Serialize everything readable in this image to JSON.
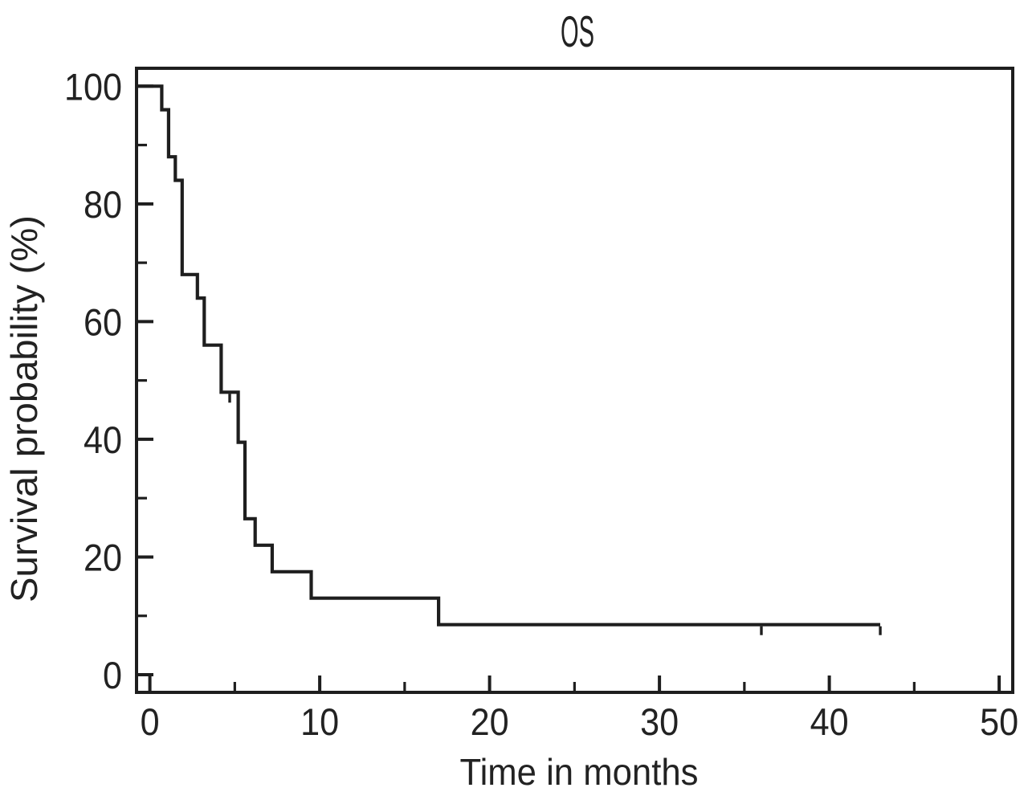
{
  "figure": {
    "title": "OS",
    "background": "#ffffff"
  },
  "chart_data": {
    "type": "line",
    "subtype": "kaplan-meier-step",
    "title": "OS",
    "xlabel": "Time in months",
    "ylabel": "Survival probability (%)",
    "xlim": [
      0,
      50
    ],
    "ylim": [
      0,
      100
    ],
    "x_major_ticks": [
      0,
      10,
      20,
      30,
      40,
      50
    ],
    "x_minor_ticks": [
      5,
      15,
      25,
      35,
      45
    ],
    "y_major_ticks": [
      0,
      20,
      40,
      60,
      80,
      100
    ],
    "y_minor_ticks": [
      10,
      30,
      50,
      70,
      90
    ],
    "grid": false,
    "legend_position": "none",
    "line_color": "#1e1e1e",
    "series": [
      {
        "name": "OS",
        "steps": [
          [
            0,
            100
          ],
          [
            0.7,
            96
          ],
          [
            1.1,
            88
          ],
          [
            1.5,
            84
          ],
          [
            1.9,
            68
          ],
          [
            2.8,
            64
          ],
          [
            3.2,
            56
          ],
          [
            4.2,
            48
          ],
          [
            5.2,
            39.5
          ],
          [
            5.6,
            26.5
          ],
          [
            6.2,
            22
          ],
          [
            7.2,
            17.5
          ],
          [
            9.5,
            13
          ],
          [
            17,
            8.5
          ]
        ],
        "end_time": 43,
        "end_value": 8.5,
        "censor_marks": [
          [
            4.7,
            48
          ],
          [
            36,
            8.5
          ],
          [
            43,
            8.5
          ]
        ]
      }
    ]
  }
}
